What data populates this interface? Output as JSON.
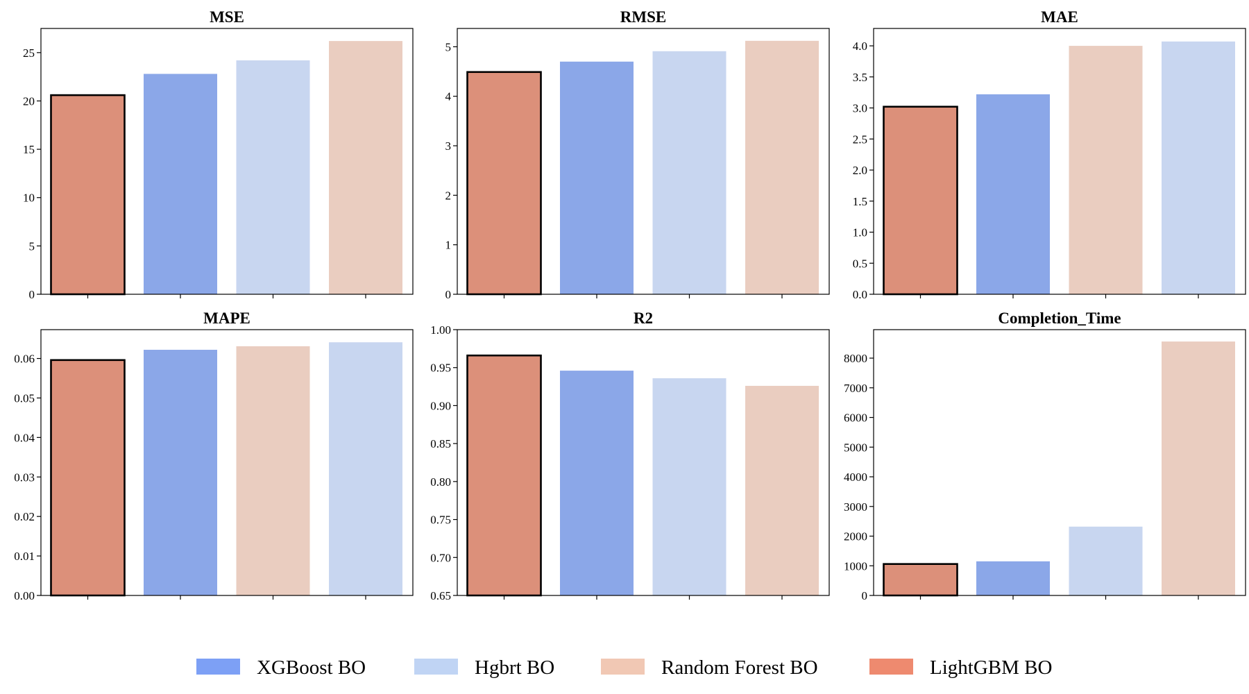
{
  "colors": {
    "XGBoost BO": "#8BA7E8",
    "Hgbrt BO": "#C8D6F0",
    "Random Forest BO": "#EACDC0",
    "LightGBM BO": "#DC907A",
    "legend_XGBoost BO": "#7DA0F5",
    "legend_Hgbrt BO": "#C0D4F4",
    "legend_Random Forest BO": "#F1C8B4",
    "legend_LightGBM BO": "#EE8A6F"
  },
  "legend": [
    "XGBoost BO",
    "Hgbrt BO",
    "Random Forest BO",
    "LightGBM BO"
  ],
  "chart_data": [
    {
      "type": "bar",
      "title": "MSE",
      "bars": [
        {
          "model": "LightGBM BO",
          "value": 20.6,
          "highlight": true
        },
        {
          "model": "XGBoost BO",
          "value": 22.8
        },
        {
          "model": "Hgbrt BO",
          "value": 24.2
        },
        {
          "model": "Random Forest BO",
          "value": 26.2
        }
      ],
      "ylim": [
        0,
        27.5
      ],
      "yticks": [
        0,
        5,
        10,
        15,
        20,
        25
      ],
      "ytick_labels": [
        "0",
        "5",
        "10",
        "15",
        "20",
        "25"
      ]
    },
    {
      "type": "bar",
      "title": "RMSE",
      "bars": [
        {
          "model": "LightGBM BO",
          "value": 4.49,
          "highlight": true
        },
        {
          "model": "XGBoost BO",
          "value": 4.7
        },
        {
          "model": "Hgbrt BO",
          "value": 4.91
        },
        {
          "model": "Random Forest BO",
          "value": 5.12
        }
      ],
      "ylim": [
        0,
        5.37
      ],
      "yticks": [
        0,
        1,
        2,
        3,
        4,
        5
      ],
      "ytick_labels": [
        "0",
        "1",
        "2",
        "3",
        "4",
        "5"
      ]
    },
    {
      "type": "bar",
      "title": "MAE",
      "bars": [
        {
          "model": "LightGBM BO",
          "value": 3.02,
          "highlight": true
        },
        {
          "model": "XGBoost BO",
          "value": 3.22
        },
        {
          "model": "Random Forest BO",
          "value": 4.0
        },
        {
          "model": "Hgbrt BO",
          "value": 4.07
        }
      ],
      "ylim": [
        0,
        4.28
      ],
      "yticks": [
        0,
        0.5,
        1,
        1.5,
        2,
        2.5,
        3,
        3.5,
        4
      ],
      "ytick_labels": [
        "0.0",
        "0.5",
        "1.0",
        "1.5",
        "2.0",
        "2.5",
        "3.0",
        "3.5",
        "4.0"
      ]
    },
    {
      "type": "bar",
      "title": "MAPE",
      "bars": [
        {
          "model": "LightGBM BO",
          "value": 0.0596,
          "highlight": true
        },
        {
          "model": "XGBoost BO",
          "value": 0.0622
        },
        {
          "model": "Random Forest BO",
          "value": 0.0631
        },
        {
          "model": "Hgbrt BO",
          "value": 0.0641
        }
      ],
      "ylim": [
        0,
        0.0673
      ],
      "yticks": [
        0,
        0.01,
        0.02,
        0.03,
        0.04,
        0.05,
        0.06
      ],
      "ytick_labels": [
        "0.00",
        "0.01",
        "0.02",
        "0.03",
        "0.04",
        "0.05",
        "0.06"
      ]
    },
    {
      "type": "bar",
      "title": "R2",
      "bars": [
        {
          "model": "LightGBM BO",
          "value": 0.966,
          "highlight": true
        },
        {
          "model": "XGBoost BO",
          "value": 0.946
        },
        {
          "model": "Hgbrt BO",
          "value": 0.936
        },
        {
          "model": "Random Forest BO",
          "value": 0.926
        }
      ],
      "ylim": [
        0.65,
        1.0
      ],
      "yticks": [
        0.65,
        0.7,
        0.75,
        0.8,
        0.85,
        0.9,
        0.95,
        1.0
      ],
      "ytick_labels": [
        "0.65",
        "0.70",
        "0.75",
        "0.80",
        "0.85",
        "0.90",
        "0.95",
        "1.00"
      ]
    },
    {
      "type": "bar",
      "title": "Completion_Time",
      "bars": [
        {
          "model": "LightGBM BO",
          "value": 1060,
          "highlight": true
        },
        {
          "model": "XGBoost BO",
          "value": 1150
        },
        {
          "model": "Hgbrt BO",
          "value": 2320
        },
        {
          "model": "Random Forest BO",
          "value": 8560
        }
      ],
      "ylim": [
        0,
        8960
      ],
      "yticks": [
        0,
        1000,
        2000,
        3000,
        4000,
        5000,
        6000,
        7000,
        8000
      ],
      "ytick_labels": [
        "0",
        "1000",
        "2000",
        "3000",
        "4000",
        "5000",
        "6000",
        "7000",
        "8000"
      ]
    }
  ]
}
